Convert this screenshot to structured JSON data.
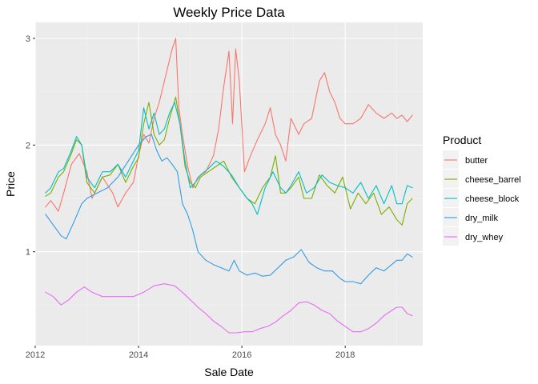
{
  "chart_data": {
    "type": "line",
    "title": "Weekly Price Data",
    "xlabel": "Sale Date",
    "ylabel": "Price",
    "xlim": [
      2012.0,
      2019.5
    ],
    "ylim": [
      0.12,
      3.15
    ],
    "x_ticks": [
      2012,
      2014,
      2016,
      2018
    ],
    "x_tick_labels": [
      "2012",
      "2014",
      "2016",
      "2018"
    ],
    "y_ticks": [
      1,
      2,
      3
    ],
    "y_tick_labels": [
      "1",
      "2",
      "3"
    ],
    "grid": true,
    "legend": {
      "title": "Product",
      "position": "right"
    },
    "series": [
      {
        "name": "butter",
        "color": "#F8766D",
        "x": [
          2012.2,
          2012.3,
          2012.45,
          2012.55,
          2012.7,
          2012.85,
          2013.0,
          2013.1,
          2013.3,
          2013.5,
          2013.6,
          2013.75,
          2013.9,
          2014.0,
          2014.1,
          2014.2,
          2014.3,
          2014.4,
          2014.55,
          2014.65,
          2014.72,
          2014.78,
          2014.85,
          2014.95,
          2015.05,
          2015.15,
          2015.3,
          2015.45,
          2015.55,
          2015.65,
          2015.75,
          2015.82,
          2015.88,
          2015.95,
          2016.05,
          2016.15,
          2016.3,
          2016.45,
          2016.55,
          2016.65,
          2016.75,
          2016.85,
          2016.95,
          2017.1,
          2017.2,
          2017.35,
          2017.5,
          2017.6,
          2017.7,
          2017.8,
          2017.9,
          2018.0,
          2018.15,
          2018.3,
          2018.45,
          2018.6,
          2018.75,
          2018.9,
          2019.0,
          2019.1,
          2019.2,
          2019.3
        ],
        "values": [
          1.42,
          1.48,
          1.38,
          1.55,
          1.82,
          1.92,
          1.75,
          1.5,
          1.7,
          1.55,
          1.42,
          1.55,
          1.65,
          1.9,
          2.1,
          2.02,
          2.25,
          2.4,
          2.7,
          2.9,
          3.0,
          2.35,
          2.1,
          1.8,
          1.6,
          1.7,
          1.75,
          1.9,
          2.15,
          2.55,
          2.88,
          2.2,
          2.9,
          2.6,
          1.75,
          1.88,
          2.05,
          2.2,
          2.35,
          2.1,
          2.0,
          1.85,
          2.25,
          2.1,
          2.2,
          2.25,
          2.6,
          2.68,
          2.5,
          2.4,
          2.25,
          2.2,
          2.2,
          2.25,
          2.38,
          2.3,
          2.25,
          2.3,
          2.25,
          2.28,
          2.22,
          2.28
        ]
      },
      {
        "name": "cheese_barrel",
        "color": "#7CAE00",
        "x": [
          2012.2,
          2012.3,
          2012.45,
          2012.55,
          2012.7,
          2012.8,
          2012.9,
          2013.0,
          2013.15,
          2013.3,
          2013.45,
          2013.6,
          2013.75,
          2013.9,
          2014.0,
          2014.1,
          2014.2,
          2014.3,
          2014.4,
          2014.5,
          2014.6,
          2014.72,
          2014.8,
          2014.9,
          2015.0,
          2015.1,
          2015.2,
          2015.35,
          2015.5,
          2015.65,
          2015.8,
          2015.95,
          2016.1,
          2016.25,
          2016.4,
          2016.55,
          2016.65,
          2016.75,
          2016.85,
          2016.95,
          2017.1,
          2017.2,
          2017.35,
          2017.5,
          2017.65,
          2017.8,
          2017.95,
          2018.1,
          2018.25,
          2018.4,
          2018.55,
          2018.7,
          2018.85,
          2019.0,
          2019.1,
          2019.2,
          2019.3
        ],
        "values": [
          1.52,
          1.55,
          1.7,
          1.75,
          1.92,
          2.05,
          2.0,
          1.65,
          1.55,
          1.7,
          1.72,
          1.82,
          1.65,
          1.8,
          1.88,
          2.2,
          2.4,
          2.1,
          2.0,
          2.05,
          2.25,
          2.45,
          2.2,
          1.8,
          1.65,
          1.6,
          1.7,
          1.75,
          1.8,
          1.85,
          1.7,
          1.6,
          1.5,
          1.45,
          1.6,
          1.7,
          1.9,
          1.55,
          1.55,
          1.6,
          1.7,
          1.5,
          1.5,
          1.72,
          1.62,
          1.55,
          1.7,
          1.4,
          1.55,
          1.45,
          1.55,
          1.35,
          1.42,
          1.3,
          1.25,
          1.45,
          1.5
        ]
      },
      {
        "name": "cheese_block",
        "color": "#00BFC4",
        "x": [
          2012.2,
          2012.3,
          2012.45,
          2012.55,
          2012.7,
          2012.8,
          2012.9,
          2013.0,
          2013.15,
          2013.3,
          2013.45,
          2013.6,
          2013.75,
          2013.9,
          2014.0,
          2014.1,
          2014.2,
          2014.3,
          2014.4,
          2014.5,
          2014.6,
          2014.7,
          2014.8,
          2014.9,
          2015.0,
          2015.1,
          2015.2,
          2015.35,
          2015.5,
          2015.65,
          2015.8,
          2015.95,
          2016.1,
          2016.2,
          2016.3,
          2016.45,
          2016.6,
          2016.75,
          2016.85,
          2016.95,
          2017.1,
          2017.25,
          2017.4,
          2017.55,
          2017.7,
          2017.85,
          2018.0,
          2018.15,
          2018.3,
          2018.45,
          2018.6,
          2018.75,
          2018.9,
          2019.0,
          2019.1,
          2019.2,
          2019.3
        ],
        "values": [
          1.55,
          1.6,
          1.75,
          1.78,
          1.95,
          2.08,
          2.0,
          1.7,
          1.6,
          1.75,
          1.75,
          1.82,
          1.7,
          1.85,
          1.95,
          2.35,
          2.15,
          2.3,
          2.1,
          2.15,
          2.3,
          2.4,
          2.2,
          1.85,
          1.6,
          1.65,
          1.72,
          1.78,
          1.85,
          1.8,
          1.72,
          1.6,
          1.5,
          1.45,
          1.35,
          1.6,
          1.75,
          1.6,
          1.55,
          1.62,
          1.75,
          1.55,
          1.6,
          1.72,
          1.65,
          1.62,
          1.6,
          1.55,
          1.65,
          1.5,
          1.62,
          1.45,
          1.62,
          1.45,
          1.45,
          1.62,
          1.6
        ]
      },
      {
        "name": "dry_milk",
        "color": "#2F9CE8",
        "x": [
          2012.2,
          2012.35,
          2012.5,
          2012.6,
          2012.75,
          2012.9,
          2013.0,
          2013.2,
          2013.4,
          2013.6,
          2013.8,
          2014.0,
          2014.15,
          2014.25,
          2014.35,
          2014.45,
          2014.55,
          2014.65,
          2014.75,
          2014.85,
          2014.95,
          2015.05,
          2015.15,
          2015.3,
          2015.45,
          2015.6,
          2015.75,
          2015.85,
          2015.95,
          2016.1,
          2016.25,
          2016.4,
          2016.55,
          2016.7,
          2016.85,
          2017.0,
          2017.15,
          2017.3,
          2017.45,
          2017.6,
          2017.75,
          2017.9,
          2018.0,
          2018.15,
          2018.3,
          2018.45,
          2018.6,
          2018.75,
          2018.9,
          2019.0,
          2019.1,
          2019.2,
          2019.3
        ],
        "values": [
          1.35,
          1.25,
          1.15,
          1.12,
          1.28,
          1.45,
          1.5,
          1.55,
          1.6,
          1.7,
          1.85,
          2.0,
          2.08,
          2.1,
          1.95,
          1.85,
          1.88,
          1.82,
          1.75,
          1.45,
          1.35,
          1.2,
          1.0,
          0.92,
          0.88,
          0.85,
          0.82,
          0.92,
          0.82,
          0.78,
          0.8,
          0.77,
          0.78,
          0.85,
          0.92,
          0.95,
          1.02,
          0.9,
          0.85,
          0.82,
          0.82,
          0.75,
          0.72,
          0.72,
          0.7,
          0.78,
          0.85,
          0.82,
          0.88,
          0.92,
          0.92,
          0.98,
          0.95
        ]
      },
      {
        "name": "dry_whey",
        "color": "#E76BF3",
        "x": [
          2012.2,
          2012.35,
          2012.5,
          2012.65,
          2012.8,
          2012.95,
          2013.1,
          2013.3,
          2013.5,
          2013.7,
          2013.9,
          2014.1,
          2014.3,
          2014.5,
          2014.7,
          2014.85,
          2015.0,
          2015.15,
          2015.3,
          2015.45,
          2015.6,
          2015.75,
          2015.9,
          2016.05,
          2016.2,
          2016.35,
          2016.5,
          2016.65,
          2016.8,
          2016.95,
          2017.1,
          2017.25,
          2017.4,
          2017.55,
          2017.7,
          2017.85,
          2018.0,
          2018.15,
          2018.3,
          2018.45,
          2018.6,
          2018.75,
          2018.9,
          2019.0,
          2019.1,
          2019.2,
          2019.3
        ],
        "values": [
          0.62,
          0.58,
          0.5,
          0.55,
          0.62,
          0.67,
          0.62,
          0.58,
          0.58,
          0.58,
          0.58,
          0.62,
          0.68,
          0.7,
          0.68,
          0.62,
          0.55,
          0.48,
          0.42,
          0.35,
          0.3,
          0.24,
          0.24,
          0.25,
          0.25,
          0.28,
          0.3,
          0.34,
          0.4,
          0.45,
          0.52,
          0.53,
          0.5,
          0.45,
          0.42,
          0.35,
          0.3,
          0.25,
          0.25,
          0.28,
          0.33,
          0.4,
          0.45,
          0.48,
          0.48,
          0.42,
          0.4
        ]
      }
    ]
  }
}
